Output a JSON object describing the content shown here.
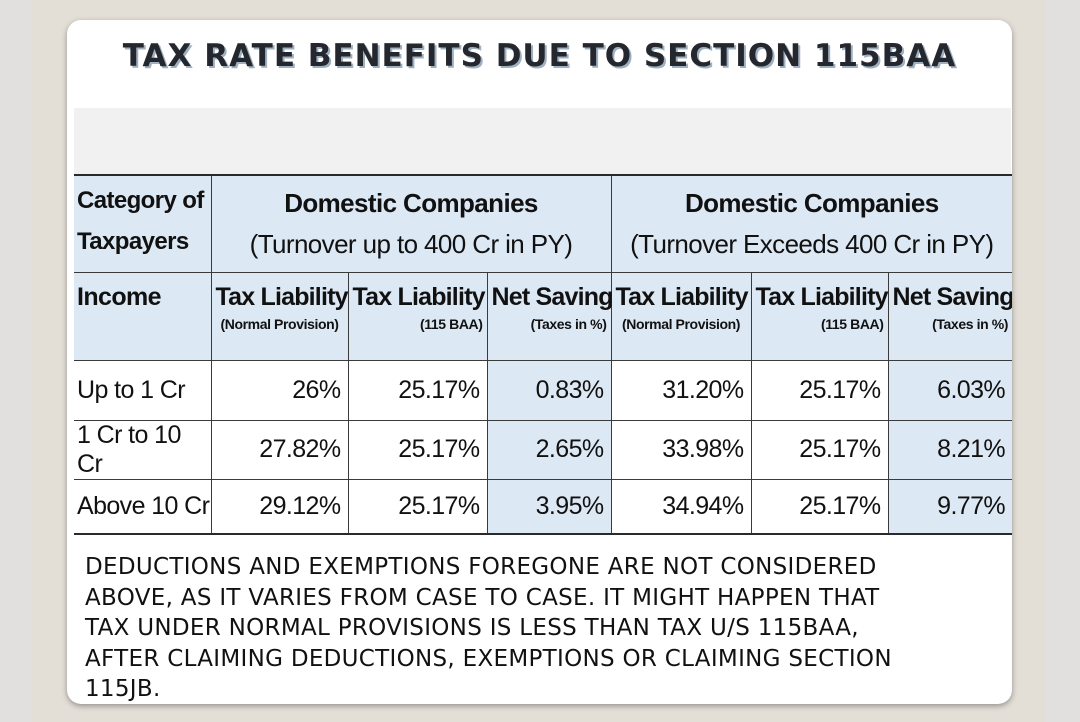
{
  "title": "TAX RATE BENEFITS DUE TO SECTION 115BAA",
  "table": {
    "category_label_line1": "Category of",
    "category_label_line2": "Taxpayers",
    "groups": [
      {
        "name": "Domestic Companies",
        "sub": "(Turnover up to 400 Cr in PY)"
      },
      {
        "name": "Domestic Companies",
        "sub": "(Turnover Exceeds 400 Cr in PY)"
      }
    ],
    "income_label": "Income",
    "columns": [
      {
        "main": "Tax Liability",
        "sub": "(Normal Provision)"
      },
      {
        "main": "Tax Liability",
        "sub": "(115 BAA)"
      },
      {
        "main": "Net Saving",
        "sub": "(Taxes in %)"
      },
      {
        "main": "Tax Liability",
        "sub": "(Normal Provision)"
      },
      {
        "main": "Tax Liability",
        "sub": "(115 BAA)"
      },
      {
        "main": "Net Saving",
        "sub": "(Taxes in %)"
      }
    ],
    "rows": [
      {
        "label": "Up to 1 Cr",
        "values": [
          "26%",
          "25.17%",
          "0.83%",
          "31.20%",
          "25.17%",
          "6.03%"
        ]
      },
      {
        "label": "1 Cr to 10 Cr",
        "values": [
          "27.82%",
          "25.17%",
          "2.65%",
          "33.98%",
          "25.17%",
          "8.21%"
        ]
      },
      {
        "label": "Above 10 Cr",
        "values": [
          "29.12%",
          "25.17%",
          "3.95%",
          "34.94%",
          "25.17%",
          "9.77%"
        ]
      }
    ]
  },
  "note": {
    "lines": [
      "DEDUCTIONS AND EXEMPTIONS FOREGONE ARE NOT CONSIDERED",
      "ABOVE, AS IT VARIES FROM CASE TO CASE. IT MIGHT HAPPEN THAT",
      "TAX UNDER NORMAL PROVISIONS IS LESS THAN TAX U/S 115BAA,",
      "AFTER CLAIMING DEDUCTIONS, EXEMPTIONS OR CLAIMING SECTION",
      "115JB."
    ]
  },
  "colors": {
    "header_blue": "#dde8f5",
    "page_bg": "#e3ded6",
    "card_bg": "#ffffff"
  }
}
